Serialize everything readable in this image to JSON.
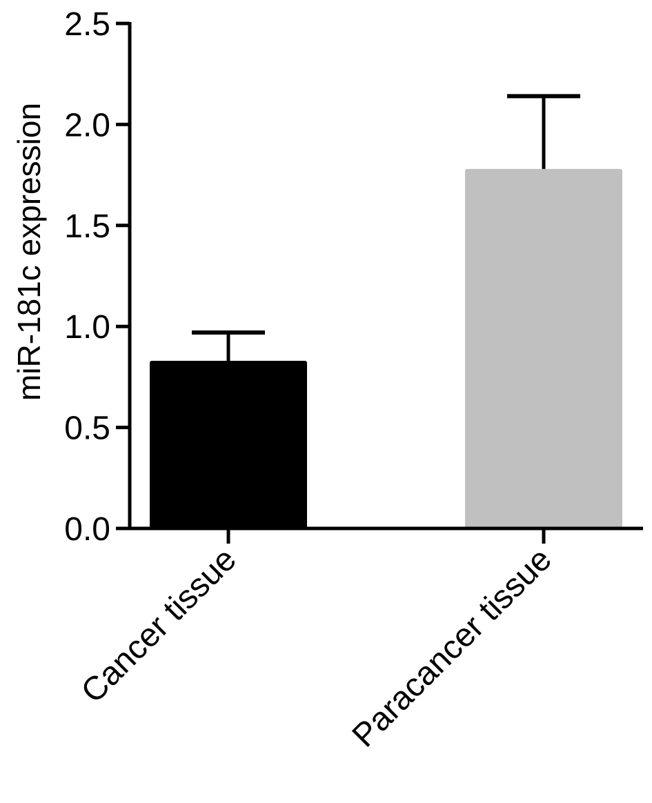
{
  "chart_data": {
    "type": "bar",
    "categories": [
      "Cancer tissue",
      "Paracancer tissue"
    ],
    "values": [
      0.83,
      1.78
    ],
    "error_upper": [
      0.97,
      2.14
    ],
    "bar_colors": [
      "#000000",
      "#c0c0c0"
    ],
    "ylabel": "miR-181c expression",
    "xlabel": "",
    "title": "",
    "ylim": [
      0,
      2.5
    ],
    "yticks": [
      0.0,
      0.5,
      1.0,
      1.5,
      2.0,
      2.5
    ],
    "ytick_labels": [
      "0.0",
      "0.5",
      "1.0",
      "1.5",
      "2.0",
      "2.5"
    ],
    "grid": false,
    "legend": "none"
  }
}
